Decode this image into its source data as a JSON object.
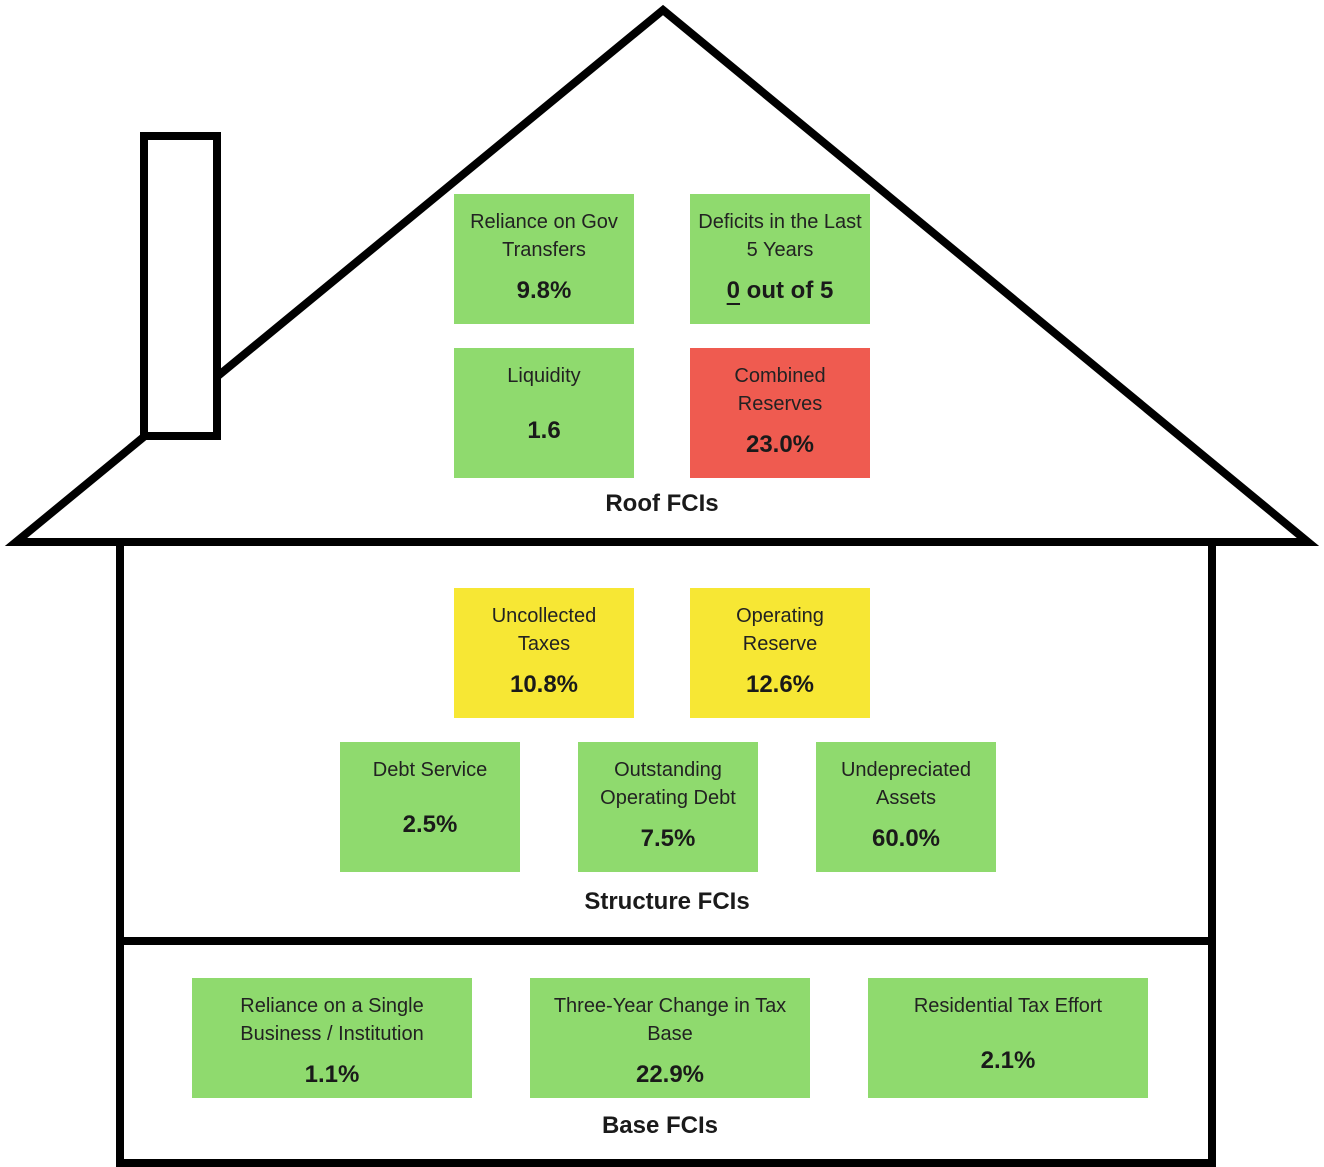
{
  "colors": {
    "good": "#8fda6e",
    "caution": "#f7e734",
    "alert": "#ef5b50",
    "outline": "#000000"
  },
  "roof": {
    "title": "Roof FCIs",
    "items": [
      {
        "label": "Reliance on Gov Transfers",
        "value": "9.8%",
        "status": "good"
      },
      {
        "label": "Deficits in the Last 5 Years",
        "value_count": "0",
        "value_rest": " out of 5",
        "status": "good"
      },
      {
        "label": "Liquidity",
        "value": "1.6",
        "status": "good"
      },
      {
        "label": "Combined Reserves",
        "value": "23.0%",
        "status": "alert"
      }
    ]
  },
  "structure": {
    "title": "Structure FCIs",
    "items": [
      {
        "label": "Uncollected Taxes",
        "value": "10.8%",
        "status": "caution"
      },
      {
        "label": "Operating Reserve",
        "value": "12.6%",
        "status": "caution"
      },
      {
        "label": "Debt Service",
        "value": "2.5%",
        "status": "good"
      },
      {
        "label": "Outstanding Operating Debt",
        "value": "7.5%",
        "status": "good"
      },
      {
        "label": "Undepreciated Assets",
        "value": "60.0%",
        "status": "good"
      }
    ]
  },
  "base": {
    "title": "Base FCIs",
    "items": [
      {
        "label": "Reliance on a Single Business / Institution",
        "value": "1.1%",
        "status": "good"
      },
      {
        "label": "Three-Year Change in Tax Base",
        "value": "22.9%",
        "status": "good"
      },
      {
        "label": "Residential Tax Effort",
        "value": "2.1%",
        "status": "good"
      }
    ]
  }
}
